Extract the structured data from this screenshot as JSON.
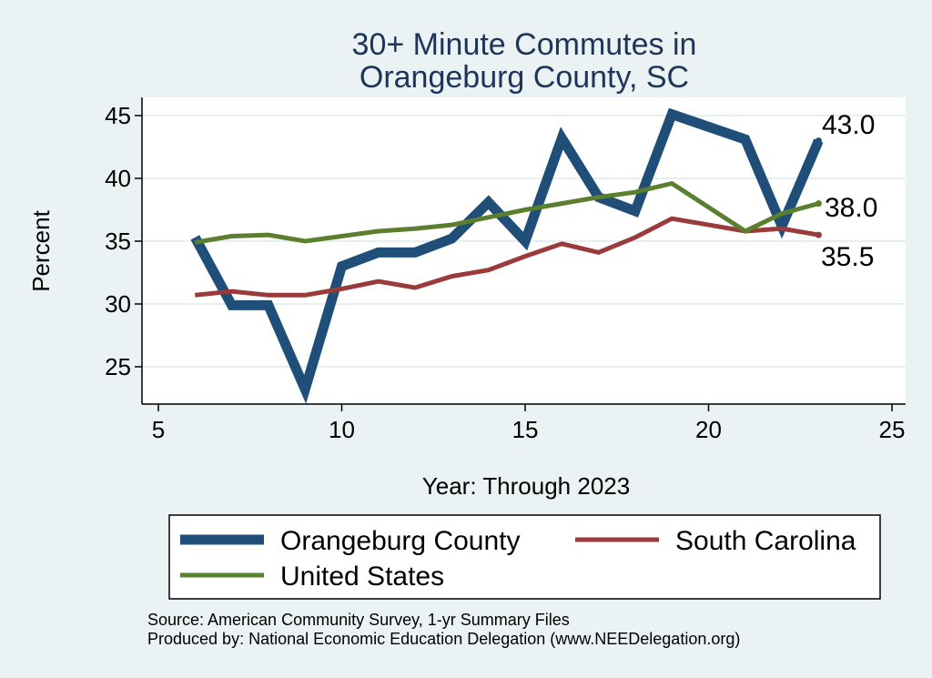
{
  "chart_data": {
    "type": "line",
    "title": [
      "30+ Minute Commutes in",
      "Orangeburg County, SC"
    ],
    "xlabel": "Year: Through 2023",
    "ylabel": "Percent",
    "xlim": [
      5,
      25
    ],
    "ylim": [
      22,
      47
    ],
    "xticks": [
      5,
      10,
      15,
      20,
      25
    ],
    "yticks": [
      25,
      30,
      35,
      40,
      45
    ],
    "grid": true,
    "series": [
      {
        "name": "Orangeburg County",
        "color": "#1f4e79",
        "x": [
          6,
          7,
          8,
          9,
          10,
          11,
          12,
          13,
          14,
          15,
          16,
          17,
          18,
          19,
          21,
          22,
          23
        ],
        "y": [
          35.3,
          29.9,
          29.9,
          23.2,
          33.0,
          34.1,
          34.1,
          35.2,
          38.1,
          35.0,
          43.2,
          38.5,
          37.4,
          45.1,
          43.1,
          36.2,
          43.0
        ]
      },
      {
        "name": "South Carolina",
        "color": "#9b3a3a",
        "x": [
          6,
          7,
          8,
          9,
          10,
          11,
          12,
          13,
          14,
          15,
          16,
          17,
          18,
          19,
          21,
          22,
          23
        ],
        "y": [
          30.7,
          31.0,
          30.7,
          30.7,
          31.2,
          31.8,
          31.3,
          32.2,
          32.7,
          33.8,
          34.8,
          34.1,
          35.3,
          36.8,
          35.8,
          36.0,
          35.5
        ]
      },
      {
        "name": "United States",
        "color": "#5b7f2e",
        "x": [
          6,
          7,
          8,
          9,
          10,
          11,
          12,
          13,
          14,
          15,
          16,
          17,
          18,
          19,
          21,
          22,
          23
        ],
        "y": [
          34.9,
          35.4,
          35.5,
          35.0,
          35.4,
          35.8,
          36.0,
          36.3,
          36.9,
          37.5,
          38.0,
          38.5,
          38.9,
          39.6,
          35.8,
          37.2,
          38.0
        ]
      }
    ],
    "end_labels": [
      "43.0",
      "38.0",
      "35.5"
    ],
    "legend": [
      "Orangeburg County",
      "South Carolina",
      "United States"
    ],
    "legend_position": "bottom"
  },
  "notes": {
    "source": "Source: American Community Survey, 1-yr Summary Files",
    "produced": "Produced by: National Economic Education Delegation (www.NEEDelegation.org)"
  }
}
